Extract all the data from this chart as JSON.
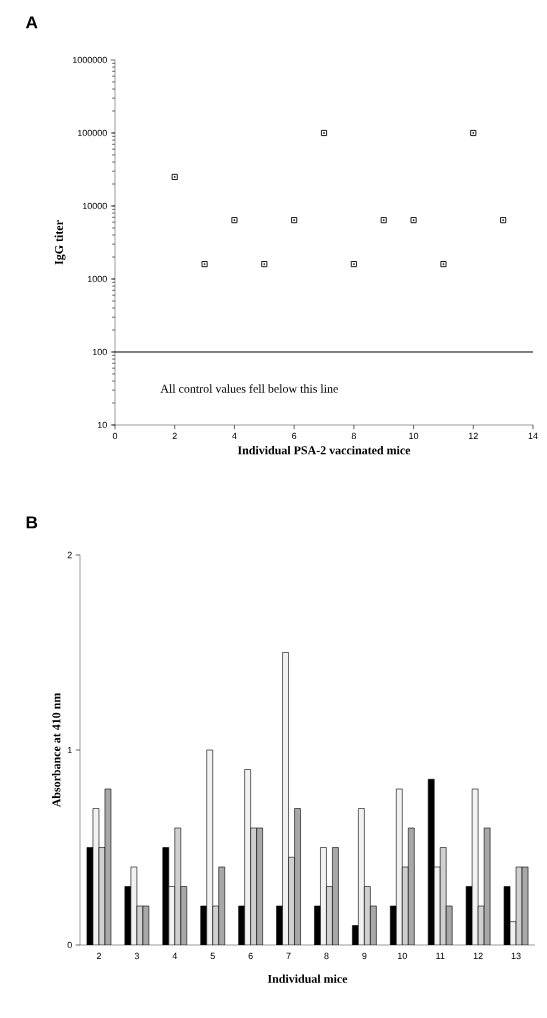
{
  "chart_data": [
    {
      "type": "scatter",
      "title": "A",
      "xlabel": "Individual PSA-2 vaccinated mice",
      "ylabel": "IgG titer",
      "x": [
        2,
        3,
        4,
        5,
        6,
        7,
        8,
        9,
        10,
        11,
        12,
        13
      ],
      "values": [
        25000,
        1600,
        6400,
        1600,
        6400,
        100000,
        1600,
        6400,
        6400,
        1600,
        100000,
        6400
      ],
      "color": "#000000",
      "marker": "square",
      "log": true,
      "xlim": [
        0,
        14
      ],
      "xticks": [
        0,
        2,
        4,
        6,
        8,
        10,
        12,
        14
      ],
      "ylim": [
        10,
        1000000
      ],
      "yticks": [
        10,
        100,
        1000,
        10000,
        100000,
        1000000
      ],
      "ref_lines": [
        {
          "axis": "y",
          "value": 100
        }
      ],
      "annotations": [
        "All control values fell below this line"
      ]
    },
    {
      "type": "bar",
      "title": "B",
      "xlabel": "Individual mice",
      "ylabel": "Absorbance at 410 nm",
      "categories": [
        "2",
        "3",
        "4",
        "5",
        "6",
        "7",
        "8",
        "9",
        "10",
        "11",
        "12",
        "13"
      ],
      "series": [
        {
          "color": "#000000",
          "values": [
            0.5,
            0.3,
            0.5,
            0.2,
            0.2,
            0.2,
            0.2,
            0.1,
            0.2,
            0.85,
            0.3,
            0.3
          ]
        },
        {
          "color": "#f2f2f2",
          "values": [
            0.7,
            0.4,
            0.3,
            1.0,
            0.9,
            1.5,
            0.5,
            0.7,
            0.8,
            0.4,
            0.8,
            0.12
          ]
        },
        {
          "color": "#d0d0d0",
          "values": [
            0.5,
            0.2,
            0.6,
            0.2,
            0.6,
            0.45,
            0.3,
            0.3,
            0.4,
            0.5,
            0.2,
            0.4
          ]
        },
        {
          "color": "#a8a8a8",
          "values": [
            0.8,
            0.2,
            0.3,
            0.4,
            0.6,
            0.7,
            0.5,
            0.2,
            0.6,
            0.2,
            0.6,
            0.4
          ]
        }
      ],
      "ylim": [
        0,
        2
      ],
      "yticks": [
        0,
        1,
        2
      ]
    }
  ]
}
